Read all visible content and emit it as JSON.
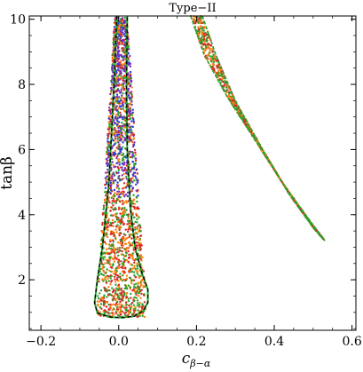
{
  "chart_data": {
    "type": "scatter",
    "title": "Type−II",
    "xlabel": "c",
    "xlabel_sub": "β−α",
    "ylabel": "tanβ",
    "xlim": [
      -0.23,
      0.61
    ],
    "ylim": [
      0.45,
      10.1
    ],
    "x_ticks": [
      -0.2,
      0.0,
      0.2,
      0.4,
      0.6
    ],
    "x_tick_labels": [
      "−0.2",
      "0.0",
      "0.2",
      "0.4",
      "0.6"
    ],
    "y_ticks": [
      2,
      4,
      6,
      8,
      10
    ],
    "y_tick_labels": [
      "2",
      "4",
      "6",
      "8",
      "10"
    ],
    "grid": false,
    "point_colors": [
      "#2ca02c",
      "#d62728",
      "#ff7f0e",
      "#7b2fbe",
      "#1f3fd6"
    ],
    "regions": [
      {
        "boundary_color": "#000000",
        "boundary_style": "dashed",
        "outline": [
          [
            -0.005,
            10.1
          ],
          [
            -0.012,
            8.0
          ],
          [
            -0.025,
            5.0
          ],
          [
            -0.042,
            3.0
          ],
          [
            -0.055,
            2.0
          ],
          [
            -0.062,
            1.3
          ],
          [
            -0.055,
            0.98
          ],
          [
            -0.02,
            0.85
          ],
          [
            0.01,
            0.84
          ],
          [
            0.04,
            0.88
          ],
          [
            0.063,
            1.05
          ],
          [
            0.075,
            1.3
          ],
          [
            0.075,
            1.7
          ],
          [
            0.06,
            2.2
          ],
          [
            0.042,
            3.0
          ],
          [
            0.03,
            4.2
          ],
          [
            0.022,
            6.0
          ],
          [
            0.02,
            8.0
          ],
          [
            0.022,
            10.1
          ]
        ]
      },
      {
        "boundary_color": "#2ca02c",
        "boundary_style": "dashed",
        "outer_edge": [
          [
            0.185,
            10.1
          ],
          [
            0.22,
            8.9
          ],
          [
            0.28,
            7.6
          ],
          [
            0.35,
            6.3
          ],
          [
            0.42,
            5.0
          ],
          [
            0.48,
            4.0
          ],
          [
            0.53,
            3.2
          ]
        ],
        "inner_edge": [
          [
            0.215,
            10.1
          ],
          [
            0.25,
            8.9
          ],
          [
            0.3,
            7.5
          ],
          [
            0.37,
            6.0
          ],
          [
            0.44,
            4.6
          ],
          [
            0.5,
            3.6
          ],
          [
            0.53,
            3.2
          ]
        ]
      }
    ]
  }
}
